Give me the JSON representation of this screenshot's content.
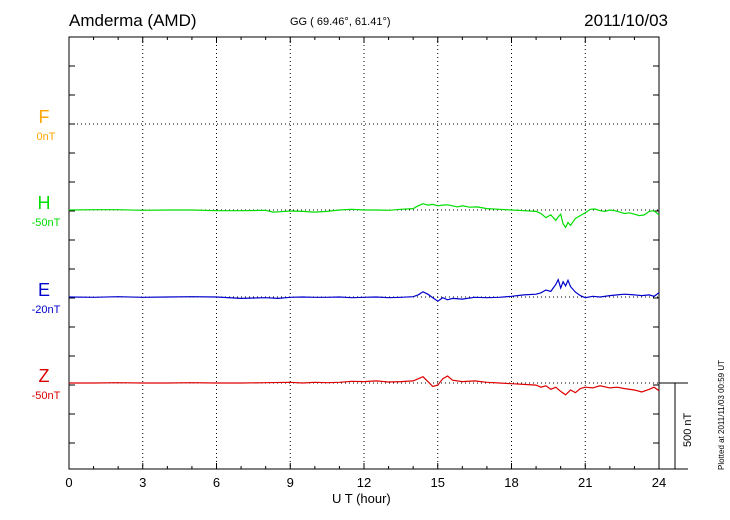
{
  "header": {
    "station": "Amderma (AMD)",
    "coords": "GG ( 69.46°,  61.41°)",
    "date": "2011/10/03"
  },
  "footer": {
    "plotted": "Plotted at 2011/11/03 00:59 UT"
  },
  "colors": {
    "F": "#ffa500",
    "H": "#00dd00",
    "E": "#0000cc",
    "Z": "#dd0000",
    "axis": "#000000"
  },
  "chart_data": {
    "type": "line",
    "title": "Amderma (AMD)",
    "xlabel": "U T (hour)",
    "ylabel": "",
    "xlim": [
      0,
      24
    ],
    "xticks": [
      "0",
      "3",
      "6",
      "9",
      "12",
      "15",
      "18",
      "21",
      "24"
    ],
    "grid": true,
    "scale_bar": "500 nT",
    "series": [
      {
        "name": "F",
        "baseline": "0nT",
        "x": [],
        "y": []
      },
      {
        "name": "H",
        "baseline": "-50nT",
        "x": [
          0,
          1,
          2,
          3,
          4,
          5,
          6,
          7,
          8,
          8.3,
          8.6,
          9,
          9.5,
          10,
          10.5,
          11,
          11.5,
          12,
          12.5,
          13,
          13.5,
          14,
          14.2,
          14.4,
          14.6,
          14.8,
          15,
          15.2,
          15.4,
          15.6,
          15.8,
          16,
          16.3,
          16.6,
          17,
          17.5,
          18,
          18.5,
          19,
          19.2,
          19.4,
          19.6,
          19.8,
          19.9,
          20.0,
          20.1,
          20.2,
          20.3,
          20.4,
          20.6,
          20.8,
          21,
          21.2,
          21.4,
          21.6,
          21.8,
          22,
          22.2,
          22.4,
          22.6,
          22.8,
          23,
          23.2,
          23.4,
          23.6,
          23.8,
          24
        ],
        "y": [
          0,
          5,
          5,
          -5,
          0,
          0,
          -10,
          -10,
          -5,
          -30,
          -25,
          -15,
          -20,
          -30,
          -20,
          0,
          10,
          0,
          0,
          -5,
          10,
          20,
          60,
          90,
          70,
          80,
          60,
          70,
          75,
          60,
          45,
          60,
          40,
          45,
          20,
          10,
          0,
          -10,
          -20,
          -50,
          -110,
          -70,
          -150,
          -100,
          -60,
          -200,
          -250,
          -180,
          -220,
          -120,
          -80,
          -40,
          10,
          15,
          -10,
          -20,
          0,
          -10,
          -30,
          -50,
          -40,
          -60,
          -80,
          -70,
          -20,
          -10,
          -70
        ]
      },
      {
        "name": "E",
        "baseline": "-20nT",
        "x": [
          0,
          1,
          2,
          3,
          4,
          5,
          6,
          7,
          8,
          8.5,
          9,
          9.5,
          10,
          10.5,
          11,
          11.5,
          12,
          12.5,
          13,
          13.5,
          14,
          14.2,
          14.4,
          14.6,
          14.8,
          15,
          15.2,
          15.4,
          15.6,
          16,
          16.5,
          17,
          17.5,
          18,
          18.5,
          19,
          19.2,
          19.4,
          19.6,
          19.8,
          19.9,
          20.0,
          20.1,
          20.2,
          20.3,
          20.4,
          20.6,
          20.8,
          21,
          21.3,
          21.6,
          22,
          22.3,
          22.6,
          23,
          23.3,
          23.6,
          23.8,
          24
        ],
        "y": [
          0,
          -5,
          5,
          -5,
          0,
          5,
          0,
          -20,
          -10,
          -20,
          -5,
          0,
          -5,
          -5,
          0,
          -10,
          -5,
          0,
          -10,
          -5,
          5,
          30,
          75,
          40,
          -10,
          -60,
          -10,
          -40,
          -20,
          -30,
          -5,
          -10,
          -5,
          10,
          30,
          40,
          60,
          100,
          80,
          180,
          250,
          130,
          220,
          160,
          240,
          150,
          70,
          20,
          -10,
          10,
          0,
          20,
          30,
          40,
          30,
          20,
          30,
          10,
          60
        ]
      },
      {
        "name": "Z",
        "baseline": "-50nT",
        "x": [
          0,
          1,
          2,
          3,
          4,
          5,
          6,
          7,
          8,
          9,
          9.5,
          10,
          10.5,
          11,
          11.5,
          12,
          12.5,
          13,
          13.5,
          14,
          14.2,
          14.4,
          14.6,
          14.8,
          15,
          15.2,
          15.4,
          15.6,
          16,
          16.5,
          17,
          17.5,
          18,
          18.5,
          19,
          19.2,
          19.4,
          19.6,
          19.8,
          20,
          20.2,
          20.4,
          20.6,
          20.8,
          21,
          21.3,
          21.6,
          22,
          22.3,
          22.6,
          23,
          23.3,
          23.6,
          23.8,
          24
        ],
        "y": [
          0,
          0,
          5,
          0,
          0,
          5,
          0,
          0,
          5,
          10,
          0,
          10,
          5,
          10,
          25,
          20,
          30,
          15,
          20,
          30,
          60,
          90,
          20,
          -50,
          -30,
          60,
          100,
          40,
          20,
          30,
          10,
          0,
          -10,
          -20,
          -30,
          -60,
          -40,
          -90,
          -60,
          -120,
          -170,
          -100,
          -140,
          -80,
          -60,
          -70,
          -40,
          -70,
          -60,
          -80,
          -100,
          -130,
          -90,
          -60,
          -110
        ]
      }
    ]
  }
}
